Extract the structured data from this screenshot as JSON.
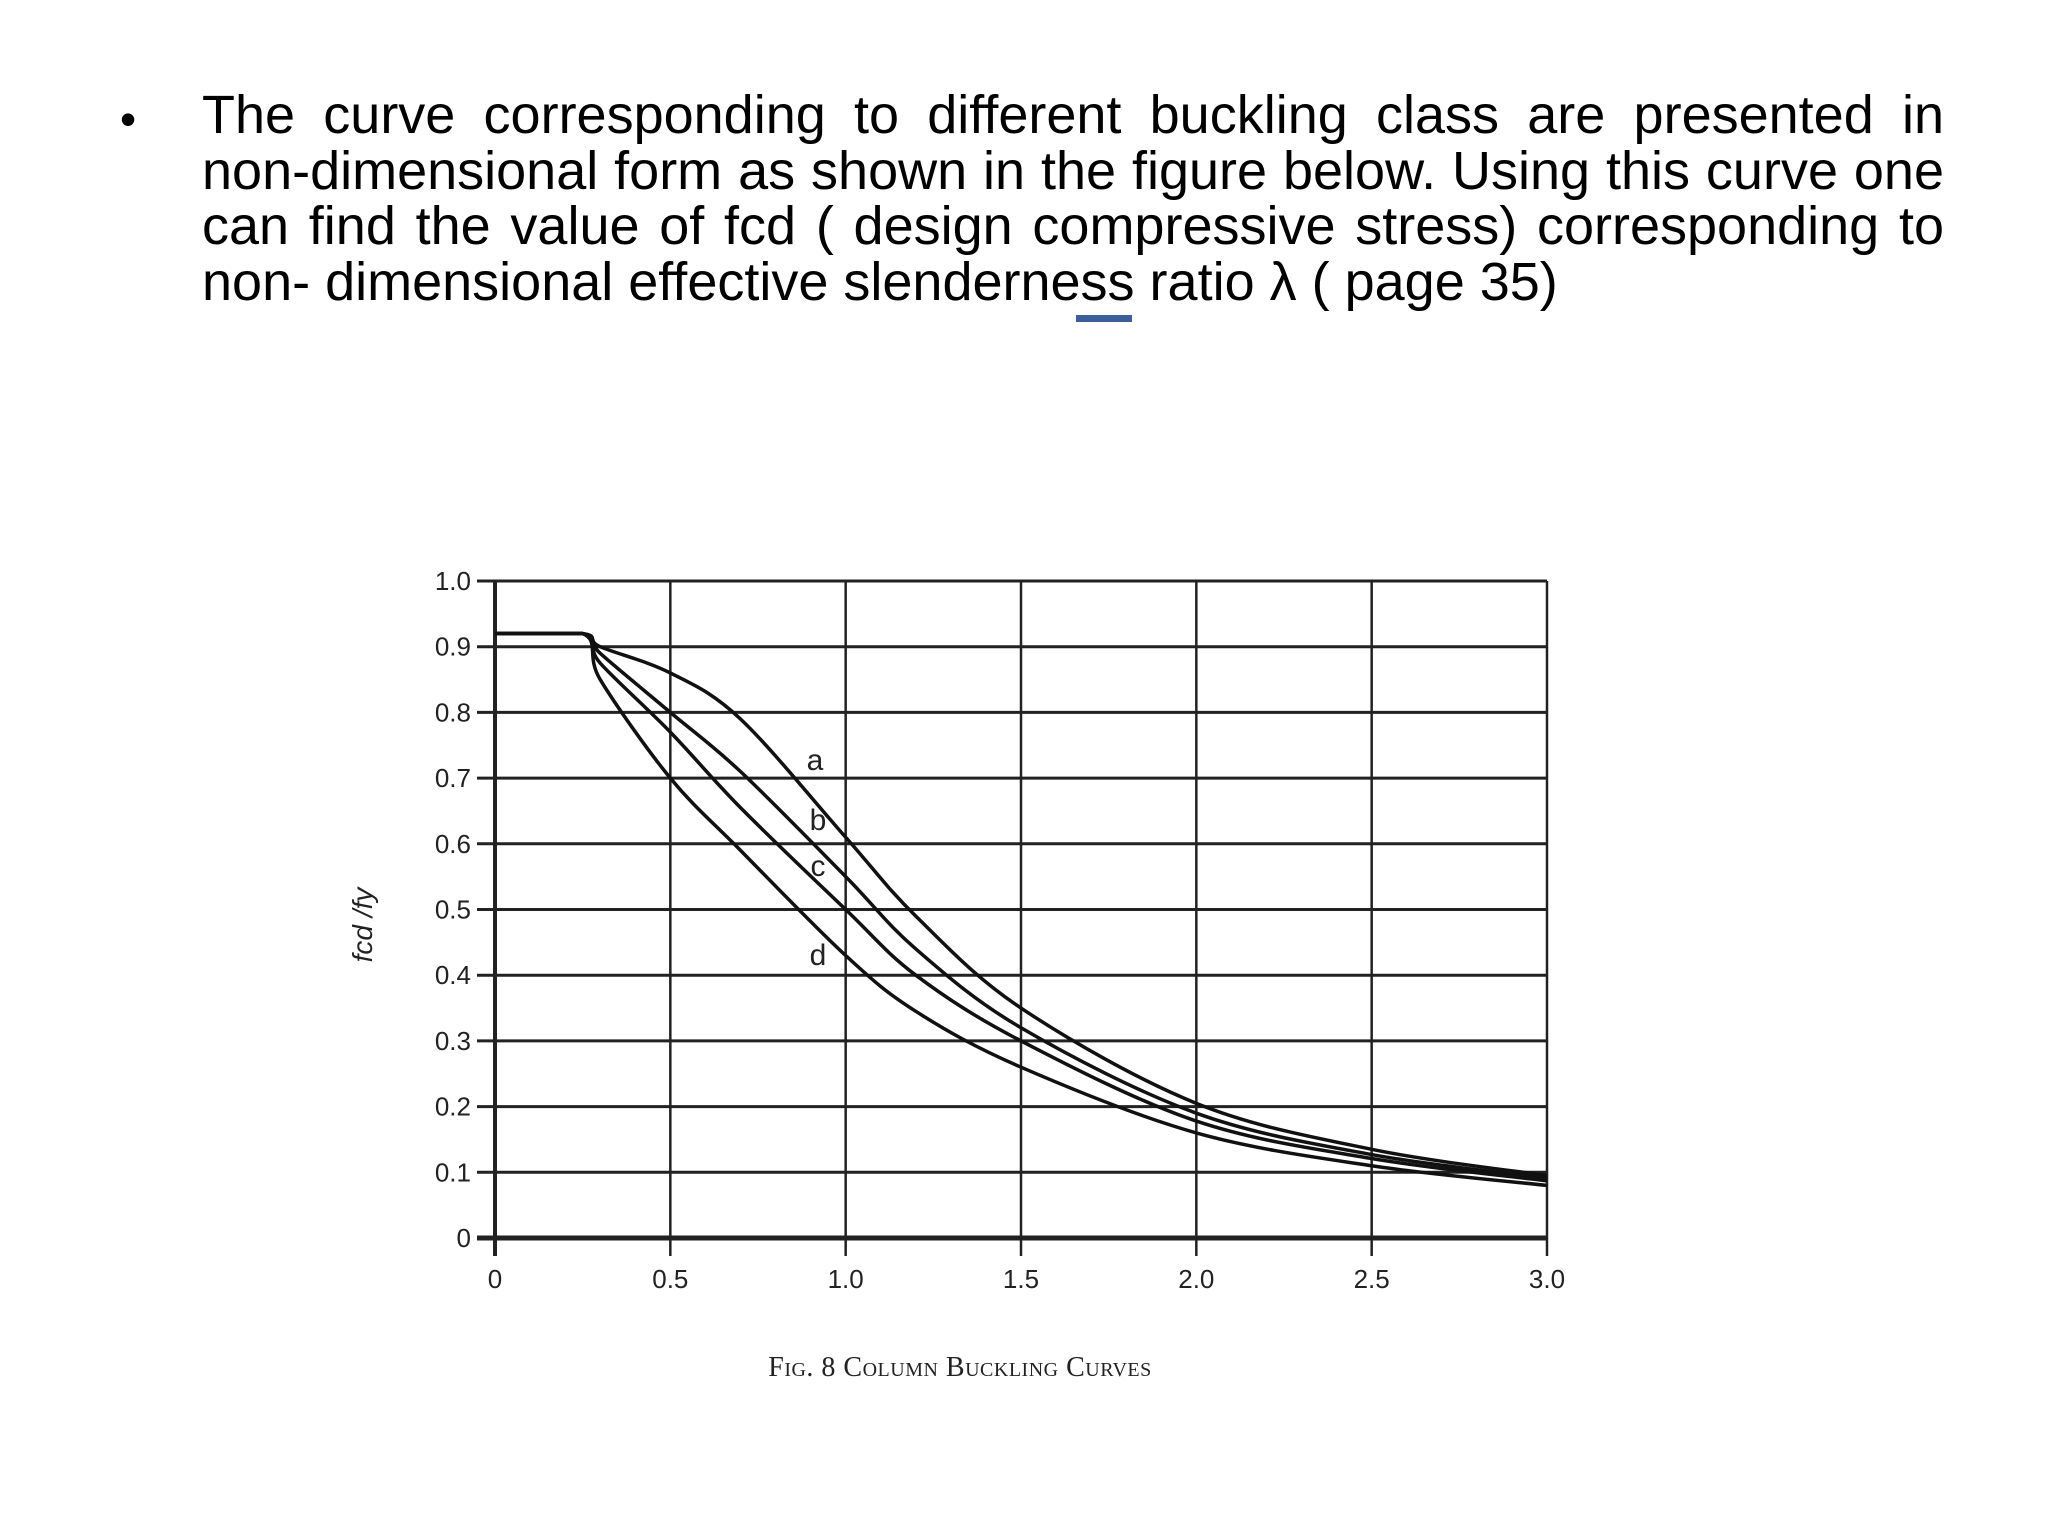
{
  "slide": {
    "bullet": "•",
    "text": "The curve corresponding to different buckling class are presented in non-dimensional form as shown in the figure below. Using this curve one can find the value of fcd ( design compressive stress) corresponding to non- dimensional effective slenderness ratio λ ( page 35)",
    "accent_color": "#3a5f9a"
  },
  "chart_data": {
    "type": "line",
    "caption": "Fig. 8 Column Buckling Curves",
    "xlabel": "",
    "ylabel": "fcd /fy",
    "xlim": [
      0,
      3.0
    ],
    "ylim": [
      0,
      1.0
    ],
    "grid": true,
    "x_ticks": [
      "0",
      "0.5",
      "1.0",
      "1.5",
      "2.0",
      "2.5",
      "3.0"
    ],
    "y_ticks": [
      "0",
      "0.1",
      "0.2",
      "0.3",
      "0.4",
      "0.5",
      "0.6",
      "0.7",
      "0.8",
      "0.9",
      "1.0"
    ],
    "x": [
      0,
      0.25,
      0.3,
      0.5,
      0.7,
      1.0,
      1.2,
      1.5,
      2.0,
      2.5,
      3.0
    ],
    "series": [
      {
        "name": "a",
        "values": [
          0.92,
          0.92,
          0.9,
          0.86,
          0.79,
          0.61,
          0.49,
          0.35,
          0.205,
          0.135,
          0.095
        ]
      },
      {
        "name": "b",
        "values": [
          0.92,
          0.92,
          0.89,
          0.8,
          0.71,
          0.55,
          0.44,
          0.32,
          0.19,
          0.127,
          0.091
        ]
      },
      {
        "name": "c",
        "values": [
          0.92,
          0.92,
          0.875,
          0.77,
          0.655,
          0.5,
          0.4,
          0.3,
          0.178,
          0.121,
          0.087
        ]
      },
      {
        "name": "d",
        "values": [
          0.92,
          0.92,
          0.85,
          0.7,
          0.59,
          0.43,
          0.345,
          0.26,
          0.16,
          0.11,
          0.08
        ]
      }
    ],
    "line_color": "#111111"
  }
}
